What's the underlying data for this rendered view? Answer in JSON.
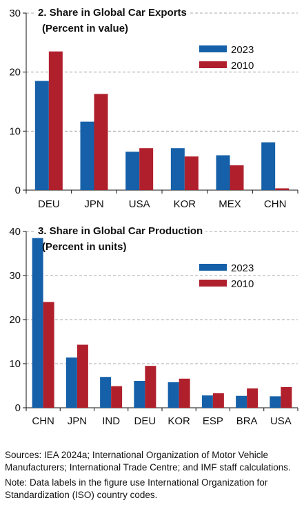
{
  "chart_data": [
    {
      "type": "bar",
      "title": "2. Share in Global Car Exports",
      "subtitle": "(Percent in value)",
      "categories": [
        "DEU",
        "JPN",
        "USA",
        "KOR",
        "MEX",
        "CHN"
      ],
      "series": [
        {
          "name": "2023",
          "values": [
            18.5,
            11.6,
            6.5,
            7.1,
            5.9,
            8.1
          ]
        },
        {
          "name": "2010",
          "values": [
            23.5,
            16.3,
            7.1,
            5.7,
            4.2,
            0.3
          ]
        }
      ],
      "colors": {
        "2023": "#1560a8",
        "2010": "#b0202c"
      },
      "ylim": [
        0,
        30
      ],
      "yticks": [
        0,
        10,
        20,
        30
      ],
      "grid": true,
      "legend": "top-right"
    },
    {
      "type": "bar",
      "title": "3. Share in Global Car Production",
      "subtitle": "(Percent in units)",
      "categories": [
        "CHN",
        "JPN",
        "IND",
        "DEU",
        "KOR",
        "ESP",
        "BRA",
        "USA"
      ],
      "series": [
        {
          "name": "2023",
          "values": [
            38.5,
            11.4,
            7.0,
            6.1,
            5.8,
            2.8,
            2.7,
            2.6
          ]
        },
        {
          "name": "2010",
          "values": [
            24.0,
            14.3,
            4.9,
            9.5,
            6.6,
            3.3,
            4.4,
            4.7
          ]
        }
      ],
      "colors": {
        "2023": "#1560a8",
        "2010": "#b0202c"
      },
      "ylim": [
        0,
        40
      ],
      "yticks": [
        0,
        10,
        20,
        30,
        40
      ],
      "grid": true,
      "legend": "top-right"
    }
  ],
  "notes": {
    "sources": "Sources: IEA 2024a; International Organization of Motor Vehicle Manufacturers; International Trade Centre; and IMF staff calculations.",
    "note": "Note: Data labels in the figure use International Organization for Standardization (ISO) country codes."
  }
}
